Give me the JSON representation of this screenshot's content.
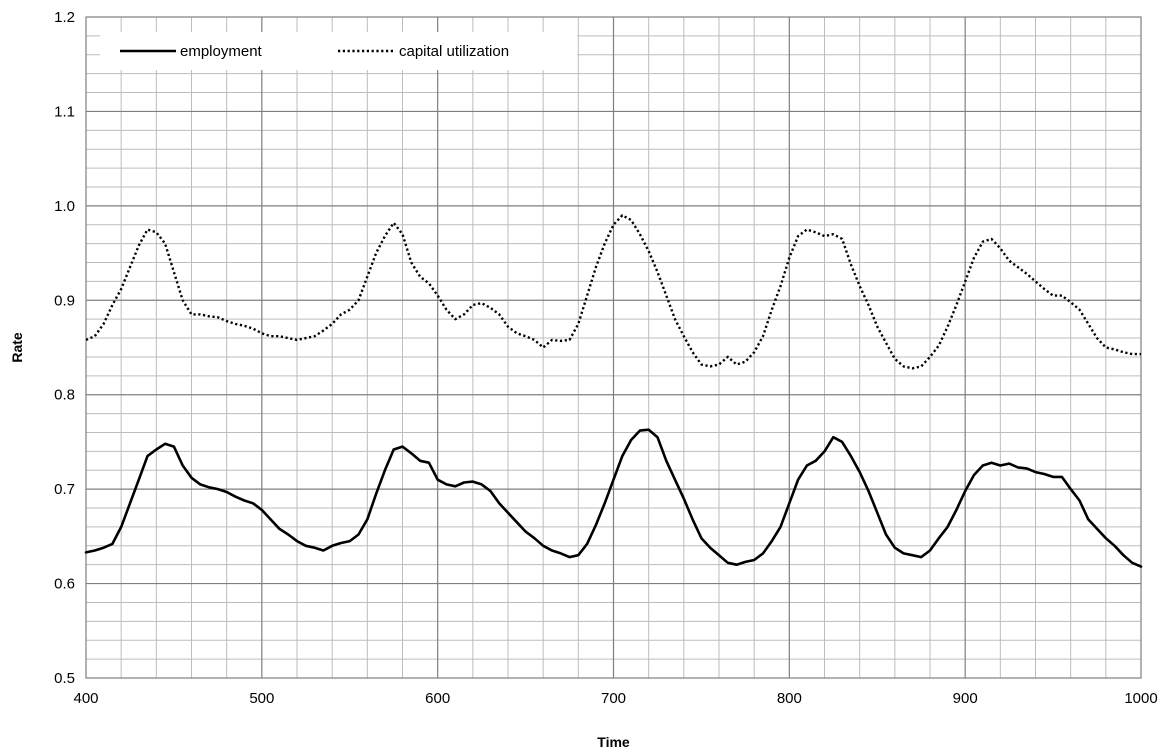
{
  "chart_data": {
    "type": "line",
    "title": "",
    "xlabel": "Time",
    "ylabel": "Rate",
    "xlim": [
      400,
      1000
    ],
    "ylim": [
      0.5,
      1.2
    ],
    "x_ticks": [
      "400",
      "500",
      "600",
      "700",
      "800",
      "900",
      "1000"
    ],
    "y_ticks": [
      "0.5",
      "0.6",
      "0.7",
      "0.8",
      "0.9",
      "1.0",
      "1.1",
      "1.2"
    ],
    "grid": true,
    "legend_position": "top-left",
    "series": [
      {
        "name": "employment",
        "style": "solid",
        "color": "#000000",
        "x": [
          400,
          405,
          410,
          415,
          420,
          425,
          430,
          435,
          440,
          445,
          450,
          455,
          460,
          465,
          470,
          475,
          480,
          485,
          490,
          495,
          500,
          505,
          510,
          515,
          520,
          525,
          530,
          535,
          540,
          545,
          550,
          555,
          560,
          565,
          570,
          575,
          580,
          585,
          590,
          595,
          600,
          605,
          610,
          615,
          620,
          625,
          630,
          635,
          640,
          645,
          650,
          655,
          660,
          665,
          670,
          675,
          680,
          685,
          690,
          695,
          700,
          705,
          710,
          715,
          720,
          725,
          730,
          735,
          740,
          745,
          750,
          755,
          760,
          765,
          770,
          775,
          780,
          785,
          790,
          795,
          800,
          805,
          810,
          815,
          820,
          825,
          830,
          835,
          840,
          845,
          850,
          855,
          860,
          865,
          870,
          875,
          880,
          885,
          890,
          895,
          900,
          905,
          910,
          915,
          920,
          925,
          930,
          935,
          940,
          945,
          950,
          955,
          960,
          965,
          970,
          975,
          980,
          985,
          990,
          995,
          1000
        ],
        "values": [
          0.633,
          0.635,
          0.638,
          0.642,
          0.66,
          0.685,
          0.71,
          0.735,
          0.742,
          0.748,
          0.745,
          0.725,
          0.712,
          0.705,
          0.702,
          0.7,
          0.697,
          0.692,
          0.688,
          0.685,
          0.678,
          0.668,
          0.658,
          0.652,
          0.645,
          0.64,
          0.638,
          0.635,
          0.64,
          0.643,
          0.645,
          0.652,
          0.668,
          0.695,
          0.72,
          0.742,
          0.745,
          0.738,
          0.73,
          0.728,
          0.71,
          0.705,
          0.703,
          0.707,
          0.708,
          0.705,
          0.698,
          0.685,
          0.675,
          0.665,
          0.655,
          0.648,
          0.64,
          0.635,
          0.632,
          0.628,
          0.63,
          0.642,
          0.662,
          0.685,
          0.71,
          0.735,
          0.752,
          0.762,
          0.763,
          0.755,
          0.73,
          0.71,
          0.69,
          0.668,
          0.648,
          0.638,
          0.63,
          0.622,
          0.62,
          0.623,
          0.625,
          0.632,
          0.645,
          0.66,
          0.685,
          0.71,
          0.725,
          0.73,
          0.74,
          0.755,
          0.75,
          0.735,
          0.718,
          0.698,
          0.675,
          0.652,
          0.638,
          0.632,
          0.63,
          0.628,
          0.635,
          0.648,
          0.66,
          0.678,
          0.698,
          0.715,
          0.725,
          0.728,
          0.725,
          0.727,
          0.723,
          0.722,
          0.718,
          0.716,
          0.713,
          0.713,
          0.7,
          0.688,
          0.668,
          0.658,
          0.648,
          0.64,
          0.63,
          0.622,
          0.618
        ]
      },
      {
        "name": "capital utilization",
        "style": "dotted",
        "color": "#000000",
        "x": [
          400,
          405,
          410,
          415,
          420,
          425,
          430,
          435,
          440,
          445,
          450,
          455,
          460,
          465,
          470,
          475,
          480,
          485,
          490,
          495,
          500,
          505,
          510,
          515,
          520,
          525,
          530,
          535,
          540,
          545,
          550,
          555,
          560,
          565,
          570,
          575,
          580,
          585,
          590,
          595,
          600,
          605,
          610,
          615,
          620,
          625,
          630,
          635,
          640,
          645,
          650,
          655,
          660,
          665,
          670,
          675,
          680,
          685,
          690,
          695,
          700,
          705,
          710,
          715,
          720,
          725,
          730,
          735,
          740,
          745,
          750,
          755,
          760,
          765,
          770,
          775,
          780,
          785,
          790,
          795,
          800,
          805,
          810,
          815,
          820,
          825,
          830,
          835,
          840,
          845,
          850,
          855,
          860,
          865,
          870,
          875,
          880,
          885,
          890,
          895,
          900,
          905,
          910,
          915,
          920,
          925,
          930,
          935,
          940,
          945,
          950,
          955,
          960,
          965,
          970,
          975,
          980,
          985,
          990,
          995,
          1000
        ],
        "values": [
          0.858,
          0.862,
          0.875,
          0.895,
          0.912,
          0.935,
          0.958,
          0.975,
          0.972,
          0.96,
          0.93,
          0.9,
          0.885,
          0.885,
          0.883,
          0.882,
          0.878,
          0.875,
          0.873,
          0.87,
          0.865,
          0.862,
          0.862,
          0.86,
          0.858,
          0.86,
          0.862,
          0.868,
          0.875,
          0.885,
          0.89,
          0.9,
          0.925,
          0.95,
          0.968,
          0.982,
          0.97,
          0.94,
          0.925,
          0.918,
          0.905,
          0.89,
          0.88,
          0.885,
          0.895,
          0.897,
          0.892,
          0.885,
          0.872,
          0.865,
          0.862,
          0.858,
          0.85,
          0.858,
          0.857,
          0.858,
          0.875,
          0.905,
          0.935,
          0.96,
          0.98,
          0.99,
          0.985,
          0.97,
          0.952,
          0.93,
          0.905,
          0.88,
          0.862,
          0.845,
          0.832,
          0.83,
          0.832,
          0.84,
          0.832,
          0.835,
          0.845,
          0.862,
          0.89,
          0.915,
          0.945,
          0.968,
          0.975,
          0.972,
          0.968,
          0.97,
          0.965,
          0.938,
          0.915,
          0.895,
          0.872,
          0.855,
          0.838,
          0.83,
          0.828,
          0.83,
          0.84,
          0.852,
          0.872,
          0.895,
          0.92,
          0.945,
          0.962,
          0.965,
          0.955,
          0.942,
          0.935,
          0.928,
          0.92,
          0.912,
          0.905,
          0.905,
          0.898,
          0.89,
          0.875,
          0.86,
          0.85,
          0.848,
          0.845,
          0.843,
          0.843
        ]
      }
    ]
  }
}
